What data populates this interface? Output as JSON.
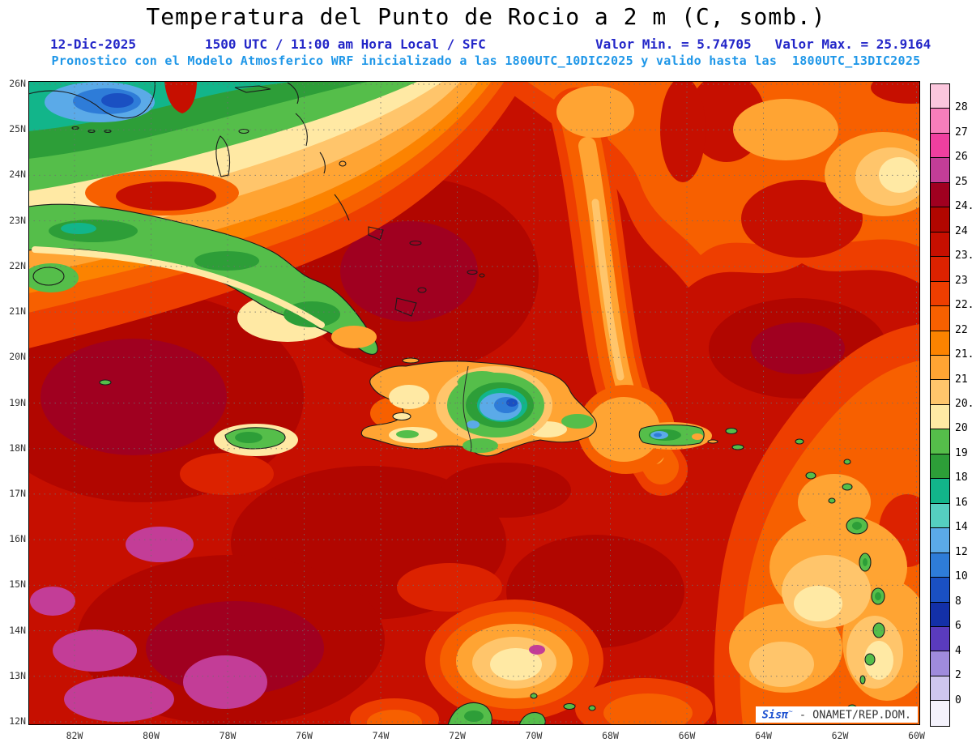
{
  "header": {
    "title": "Temperatura del Punto de Rocio a 2 m (C, somb.)",
    "date": "12-Dic-2025",
    "valid_time": "1500 UTC / 11:00 am Hora Local / SFC",
    "min_max": "Valor Min. = 5.74705   Valor Max. = 25.9164",
    "model_line": "Pronostico con el Modelo Atmosferico WRF inicializado a las 1800UTC_10DIC2025 y valido hasta las  1800UTC_13DIC2025"
  },
  "map": {
    "lat_labels": [
      "26N",
      "25N",
      "24N",
      "23N",
      "22N",
      "21N",
      "20N",
      "19N",
      "18N",
      "17N",
      "16N",
      "15N",
      "14N",
      "13N",
      "12N"
    ],
    "lon_labels": [
      "82W",
      "80W",
      "78W",
      "76W",
      "74W",
      "72W",
      "70W",
      "68W",
      "66W",
      "64W",
      "62W",
      "60W"
    ],
    "watermark_brand": "Sisπ",
    "watermark_mark": "~",
    "watermark_text": " - ONAMET/REP.DOM."
  },
  "colorbar": {
    "units": "C",
    "boundaries": [
      "28",
      "27",
      "26",
      "25",
      "24.5",
      "24",
      "23.5",
      "23",
      "22.5",
      "22",
      "21.5",
      "21",
      "20.5",
      "20",
      "19",
      "18",
      "16",
      "14",
      "12",
      "10",
      "8",
      "6",
      "4",
      "2",
      "0"
    ],
    "colors": [
      "#FBC6DD",
      "#F77EBB",
      "#EF3F9F",
      "#C33D97",
      "#A00020",
      "#B10600",
      "#C60F00",
      "#DC2200",
      "#EE3E00",
      "#F76000",
      "#FC8300",
      "#FFA433",
      "#FFC56B",
      "#FFE9A4",
      "#55BE4A",
      "#2D9E38",
      "#12B58A",
      "#55CFC0",
      "#5BAAE8",
      "#2E7CD8",
      "#1A50C2",
      "#1330A8",
      "#5A3BBE",
      "#9F8BDC",
      "#CFC6EE",
      "#F4F2FC"
    ]
  },
  "chart_data": {
    "type": "heatmap",
    "title": "Temperatura del Punto de Rocio a 2 m (C, somb.)",
    "units": "C",
    "value_min": 5.74705,
    "value_max": 25.9164,
    "lat_range": [
      "12N",
      "26N"
    ],
    "lon_range": [
      "82W",
      "60W"
    ],
    "model": "WRF",
    "run_date_label": "12-Dic-2025",
    "valid_label": "1500 UTC / 11:00 am Hora Local / SFC",
    "initialized": "1800UTC_10DIC2025",
    "valid_until": "1800UTC_13DIC2025",
    "scale_boundaries": [
      28,
      27,
      26,
      25,
      24.5,
      24,
      23.5,
      23,
      22.5,
      22,
      21.5,
      21,
      20.5,
      20,
      19,
      18,
      16,
      14,
      12,
      10,
      8,
      6,
      4,
      2,
      0
    ]
  }
}
